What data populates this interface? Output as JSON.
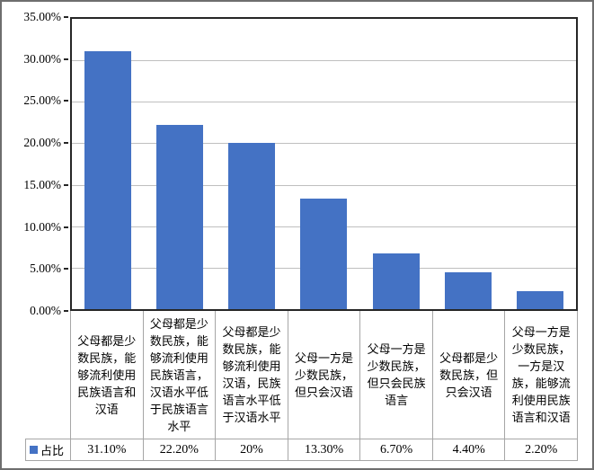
{
  "chart_data": {
    "type": "bar",
    "title": "",
    "grid": true,
    "legend_position": "table-left",
    "legend": {
      "label": "占比",
      "marker_color": "#4472C4"
    },
    "categories": [
      "父母都是少数民族，能够流利使用民族语言和汉语",
      "父母都是少数民族，能够流利使用民族语言，汉语水平低于民族语言水平",
      "父母都是少数民族，能够流利使用汉语，民族语言水平低于汉语水平",
      "父母一方是少数民族，但只会汉语",
      "父母一方是少数民族，但只会民族语言",
      "父母都是少数民族，但只会汉语",
      "父母一方是少数民族，一方是汉族，能够流利使用民族语言和汉语"
    ],
    "series": [
      {
        "name": "占比",
        "values": [
          31.1,
          22.2,
          20,
          13.3,
          6.7,
          4.4,
          2.2
        ]
      }
    ],
    "value_labels": [
      "31.10%",
      "22.20%",
      "20%",
      "13.30%",
      "6.70%",
      "4.40%",
      "2.20%"
    ],
    "xlabel": "",
    "ylabel": "",
    "y_axis": {
      "min": 0,
      "max": 35,
      "tick_step": 5,
      "tick_labels": [
        "35.00%",
        "30.00%",
        "25.00%",
        "20.00%",
        "15.00%",
        "10.00%",
        "5.00%",
        "0.00%"
      ]
    },
    "colors": {
      "bar": "#4472C4",
      "gridline": "#BFBFBF",
      "plot_border": "#262626",
      "table_border": "#A6A6A6",
      "outer_border": "#6E6E6E",
      "text": "#000000"
    }
  }
}
